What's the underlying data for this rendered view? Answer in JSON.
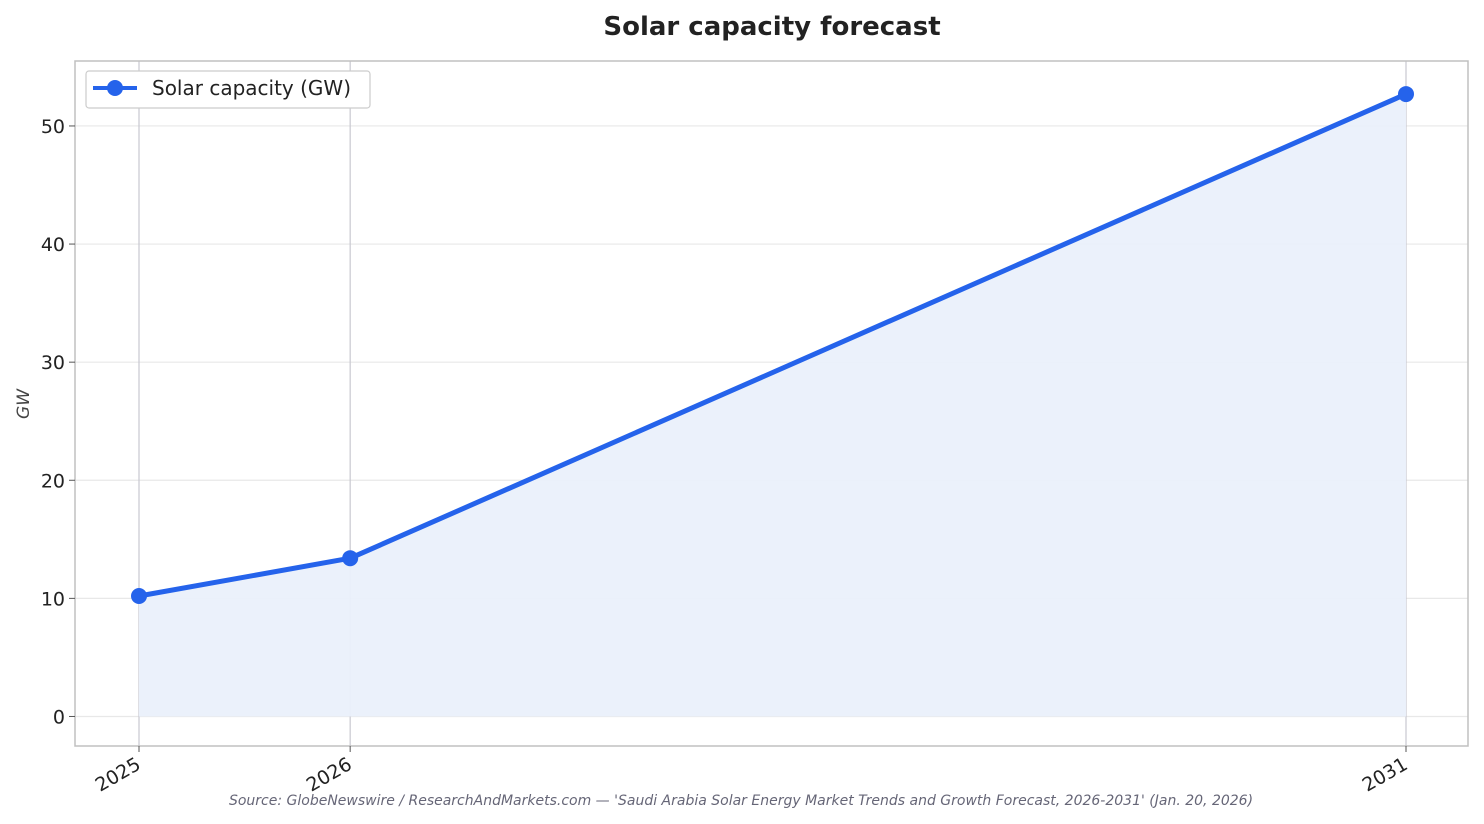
{
  "chart_data": {
    "type": "line",
    "title": "Solar capacity forecast",
    "xlabel": "",
    "ylabel": "GW",
    "categories": [
      "2025",
      "2026",
      "2031"
    ],
    "x": [
      2025,
      2026,
      2031
    ],
    "series": [
      {
        "name": "Solar capacity (GW)",
        "values": [
          10.2,
          13.4,
          52.7
        ]
      }
    ],
    "ylim": [
      -2.5,
      55.5
    ],
    "yticks": [
      0,
      10,
      20,
      30,
      40,
      50
    ],
    "grid": true,
    "area_fill": true,
    "legend_position": "top-left",
    "colors": {
      "line": "#2563eb",
      "fill": "#eaf0fb",
      "grid": "#e8e8e8",
      "vgrid": "#c8c8d0",
      "frame": "#c0c0c0"
    },
    "source": "Source: GlobeNewswire / ResearchAndMarkets.com — 'Saudi Arabia Solar Energy Market Trends and Growth Forecast, 2026-2031' (Jan. 20, 2026)"
  }
}
